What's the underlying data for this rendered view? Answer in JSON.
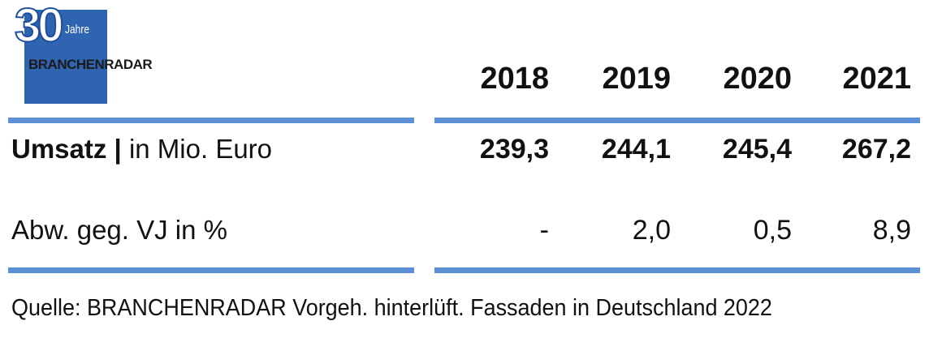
{
  "logo": {
    "number": "30",
    "caption": "Jahre",
    "brand": "BRANCHENRADAR"
  },
  "table": {
    "header": [
      "2018",
      "2019",
      "2020",
      "2021"
    ],
    "rows": [
      {
        "label": "Umsatz |",
        "unit": "in Mio. Euro",
        "cells": [
          "239,3",
          "244,1",
          "245,4",
          "267,2"
        ]
      },
      {
        "label": "Abw. geg. VJ in %",
        "cells": [
          "-",
          "2,0",
          "0,5",
          "8,9"
        ]
      }
    ]
  },
  "source": "Quelle: BRANCHENRADAR Vorgeh. hinterlüft. Fassaden in Deutschland 2022"
}
